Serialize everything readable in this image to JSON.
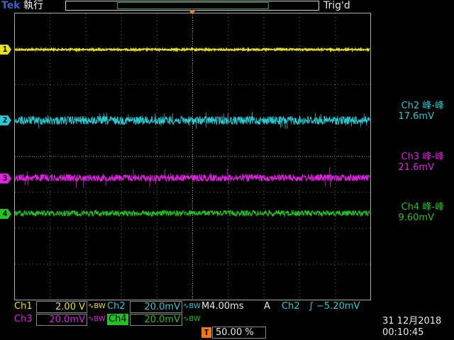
{
  "header": {
    "brand": "Tek",
    "mode": "執行",
    "trigger_status": "Trig'd",
    "trigger_marker": "T"
  },
  "channels": [
    {
      "marker": "1",
      "color": "#e6e020"
    },
    {
      "marker": "2",
      "color": "#29c9d4"
    },
    {
      "marker": "3",
      "color": "#e020e0"
    },
    {
      "marker": "4",
      "color": "#22c222"
    }
  ],
  "measurements": [
    {
      "label": "Ch2 峰-峰",
      "value": "17.6mV",
      "color": "#29c9d4"
    },
    {
      "label": "Ch3 峰-峰",
      "value": "21.6mV",
      "color": "#e020e0"
    },
    {
      "label": "Ch4 峰-峰",
      "value": "9.60mV",
      "color": "#22c222"
    }
  ],
  "footer": {
    "ch1_label": "Ch1",
    "ch1_scale": "2.00 V",
    "ch1_coupling": "∿BW",
    "ch2_label": "Ch2",
    "ch2_scale": "20.0mV",
    "ch2_coupling": "∿BW",
    "timebase": "M4.00ms",
    "trigger_mode": "A",
    "trigger_source": "Ch2",
    "trigger_slope": "∫",
    "trigger_level": "−5.20mV",
    "ch3_label": "Ch3",
    "ch3_scale": "20.0mV",
    "ch3_coupling": "∿BW",
    "ch4_label": "Ch4",
    "ch4_scale": "20.0mV",
    "ch4_coupling": "∿BW",
    "trigger_pos_marker": "T",
    "trigger_position": "50.00 %",
    "date": "31 12月2018",
    "time": "00:10:45"
  }
}
